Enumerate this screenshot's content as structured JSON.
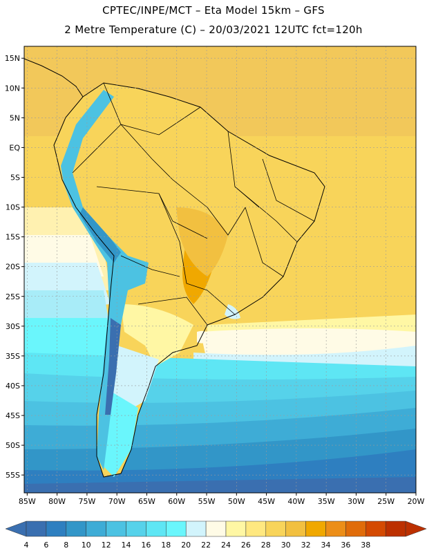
{
  "header": {
    "line1": "CPTEC/INPE/MCT –  Eta Model 15km – GFS",
    "line2": "2 Metre Temperature (C) – 20/03/2021 12UTC fct=120h"
  },
  "map": {
    "lon_ticks": [
      "85W",
      "80W",
      "75W",
      "70W",
      "65W",
      "60W",
      "55W",
      "50W",
      "45W",
      "40W",
      "35W",
      "30W",
      "25W",
      "20W"
    ],
    "lat_ticks": [
      "15N",
      "10N",
      "5N",
      "EQ",
      "5S",
      "10S",
      "15S",
      "20S",
      "25S",
      "30S",
      "35S",
      "40S",
      "45S",
      "50S",
      "55S"
    ],
    "lon_range": [
      -85.5,
      -20
    ],
    "lat_range": [
      17,
      -58
    ]
  },
  "colorbar": {
    "labels": [
      "4",
      "6",
      "8",
      "10",
      "12",
      "14",
      "16",
      "18",
      "20",
      "22",
      "24",
      "26",
      "28",
      "30",
      "32",
      "34",
      "36",
      "38"
    ],
    "colors": [
      "#3a6fb0",
      "#2e7fc0",
      "#3296c8",
      "#3eacd6",
      "#4cc2e2",
      "#56d2ea",
      "#5ee6f4",
      "#6af6fc",
      "#d2f4fc",
      "#fffbe6",
      "#fff7a4",
      "#ffe880",
      "#f8d45a",
      "#f2c040",
      "#f0a800",
      "#ec8e18",
      "#e06c0a",
      "#d44a02",
      "#bc3000"
    ],
    "low_color": "#3a6fb0",
    "high_color": "#bc3000"
  }
}
